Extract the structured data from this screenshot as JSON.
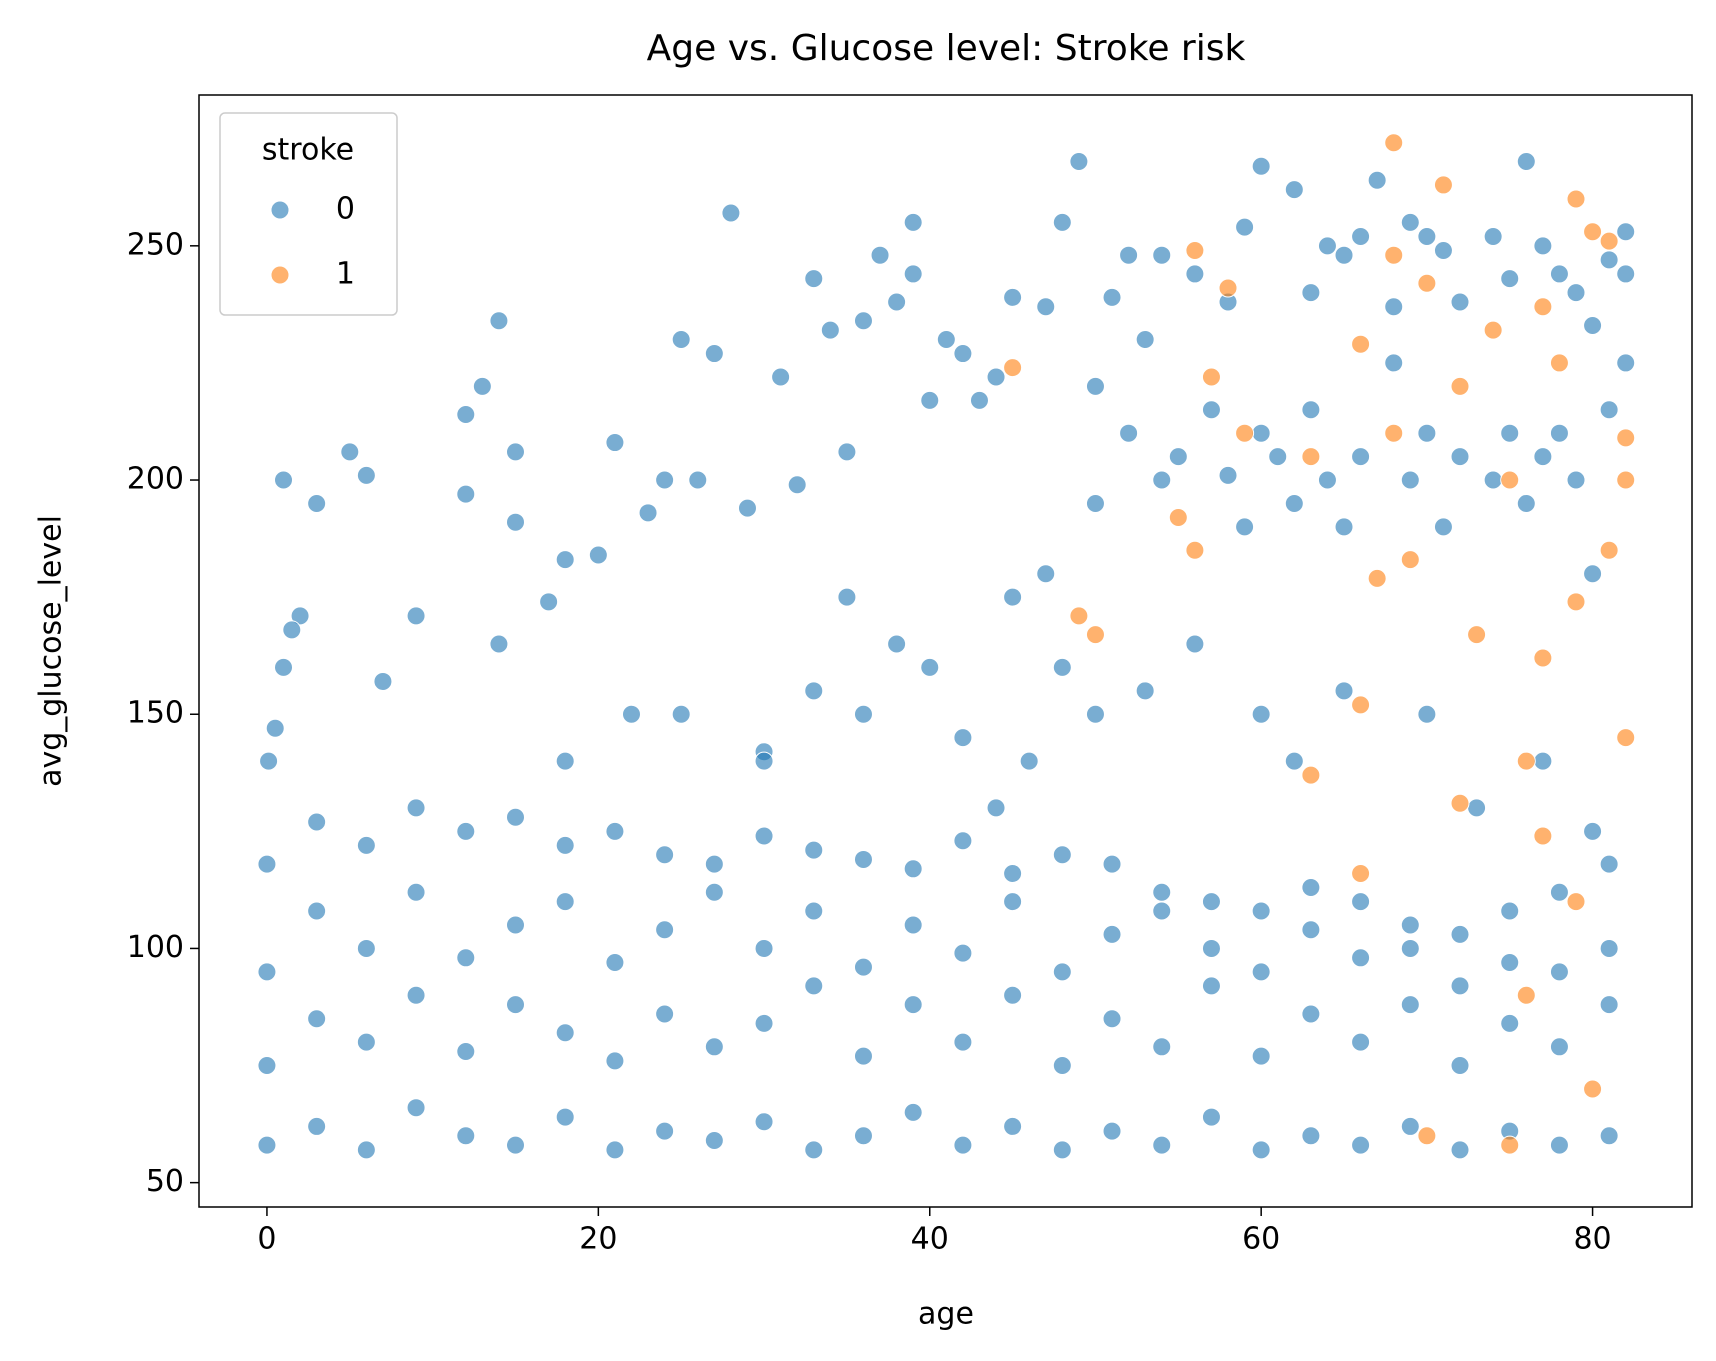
{
  "chart_data": {
    "type": "scatter",
    "title": "Age vs. Glucose level: Stroke risk",
    "x_label": "age",
    "y_label": "avg_glucose_level",
    "legend_title": "stroke",
    "legend": "upper left",
    "xlim": [
      -4.1,
      86.0
    ],
    "ylim": [
      44.8,
      282.2
    ],
    "xticks": [
      0,
      20,
      40,
      60,
      80
    ],
    "yticks": [
      50,
      100,
      150,
      200,
      250
    ],
    "series": [
      {
        "name": "0",
        "color": "#1f77b4",
        "x": [
          0.1,
          0.5,
          1,
          3,
          5,
          6,
          1,
          2,
          1.5,
          7,
          9,
          12,
          12,
          13,
          14,
          15,
          15,
          14,
          17,
          18,
          20,
          21,
          23,
          24,
          25,
          26,
          27,
          28,
          29,
          30,
          31,
          32,
          33,
          34,
          35,
          36,
          37,
          38,
          39,
          39,
          40,
          41,
          42,
          43,
          44,
          45,
          47,
          48,
          49,
          50,
          51,
          52,
          53,
          54,
          56,
          58,
          59,
          60,
          62,
          63,
          64,
          65,
          66,
          67,
          68,
          69,
          70,
          71,
          72,
          74,
          75,
          76,
          77,
          78,
          79,
          80,
          81,
          82,
          82,
          50,
          52,
          54,
          55,
          57,
          58,
          59,
          60,
          61,
          62,
          63,
          64,
          65,
          66,
          68,
          69,
          70,
          71,
          72,
          74,
          75,
          76,
          77,
          78,
          79,
          80,
          81,
          82,
          45,
          47,
          48,
          50,
          53,
          56,
          60,
          62,
          65,
          70,
          73,
          77,
          80,
          40,
          38,
          36,
          33,
          30,
          25,
          22,
          18,
          35,
          42,
          44,
          46,
          0,
          0,
          0,
          0,
          3,
          3,
          3,
          3,
          6,
          6,
          6,
          6,
          9,
          9,
          9,
          9,
          12,
          12,
          12,
          12,
          15,
          15,
          15,
          15,
          18,
          18,
          18,
          18,
          21,
          21,
          21,
          21,
          24,
          24,
          24,
          24,
          27,
          27,
          27,
          27,
          30,
          30,
          30,
          30,
          33,
          33,
          33,
          33,
          36,
          36,
          36,
          36,
          39,
          39,
          39,
          39,
          42,
          42,
          42,
          42,
          45,
          45,
          45,
          45,
          48,
          48,
          48,
          48,
          51,
          51,
          51,
          51,
          54,
          54,
          54,
          54,
          57,
          57,
          57,
          57,
          60,
          60,
          60,
          60,
          63,
          63,
          63,
          63,
          66,
          66,
          66,
          66,
          69,
          69,
          69,
          69,
          72,
          72,
          72,
          72,
          75,
          75,
          75,
          75,
          78,
          78,
          78,
          78,
          81,
          81,
          81,
          81
        ],
        "values": [
          140,
          147,
          200,
          195,
          206,
          201,
          160,
          171,
          168,
          157,
          171,
          214,
          197,
          220,
          234,
          206,
          191,
          165,
          174,
          183,
          184,
          208,
          193,
          200,
          230,
          200,
          227,
          257,
          194,
          142,
          222,
          199,
          243,
          232,
          206,
          234,
          248,
          238,
          255,
          244,
          217,
          230,
          227,
          217,
          222,
          239,
          237,
          255,
          268,
          220,
          239,
          248,
          230,
          248,
          244,
          238,
          254,
          267,
          262,
          240,
          250,
          248,
          252,
          264,
          237,
          255,
          252,
          249,
          238,
          252,
          243,
          268,
          250,
          244,
          240,
          233,
          247,
          253,
          244,
          195,
          210,
          200,
          205,
          215,
          201,
          190,
          210,
          205,
          195,
          215,
          200,
          190,
          205,
          225,
          200,
          210,
          190,
          205,
          200,
          210,
          195,
          205,
          210,
          200,
          180,
          215,
          225,
          175,
          180,
          160,
          150,
          155,
          165,
          150,
          140,
          155,
          150,
          130,
          140,
          125,
          160,
          165,
          150,
          155,
          140,
          150,
          150,
          140,
          175,
          145,
          130,
          140,
          58,
          75,
          95,
          118,
          62,
          85,
          108,
          127,
          57,
          80,
          100,
          122,
          66,
          90,
          112,
          130,
          60,
          78,
          98,
          125,
          58,
          88,
          105,
          128,
          64,
          82,
          110,
          122,
          57,
          76,
          97,
          125,
          61,
          86,
          104,
          120,
          59,
          79,
          112,
          118,
          63,
          84,
          100,
          124,
          57,
          92,
          108,
          121,
          60,
          77,
          96,
          119,
          65,
          88,
          105,
          117,
          58,
          80,
          99,
          123,
          62,
          90,
          110,
          116,
          57,
          75,
          95,
          120,
          61,
          85,
          103,
          118,
          58,
          79,
          108,
          112,
          64,
          92,
          100,
          110,
          57,
          77,
          95,
          108,
          60,
          86,
          104,
          113,
          58,
          80,
          98,
          110,
          62,
          88,
          100,
          105,
          57,
          75,
          92,
          103,
          61,
          84,
          97,
          108,
          58,
          79,
          95,
          112,
          60,
          88,
          100,
          118
        ]
      },
      {
        "name": "1",
        "color": "#ff7f0e",
        "x": [
          45,
          56,
          58,
          68,
          68,
          71,
          70,
          79,
          80,
          81,
          74,
          77,
          57,
          59,
          63,
          66,
          68,
          72,
          75,
          78,
          82,
          82,
          81,
          79,
          77,
          76,
          73,
          69,
          67,
          56,
          55,
          49,
          50,
          72,
          77,
          66,
          63,
          66,
          76,
          80,
          70,
          75,
          79,
          82
        ],
        "values": [
          224,
          249,
          241,
          272,
          248,
          263,
          242,
          260,
          253,
          251,
          232,
          237,
          222,
          210,
          205,
          229,
          210,
          220,
          200,
          225,
          209,
          200,
          185,
          174,
          162,
          140,
          167,
          183,
          179,
          185,
          192,
          171,
          167,
          131,
          124,
          152,
          137,
          116,
          90,
          70,
          60,
          58,
          110,
          145
        ]
      }
    ]
  }
}
